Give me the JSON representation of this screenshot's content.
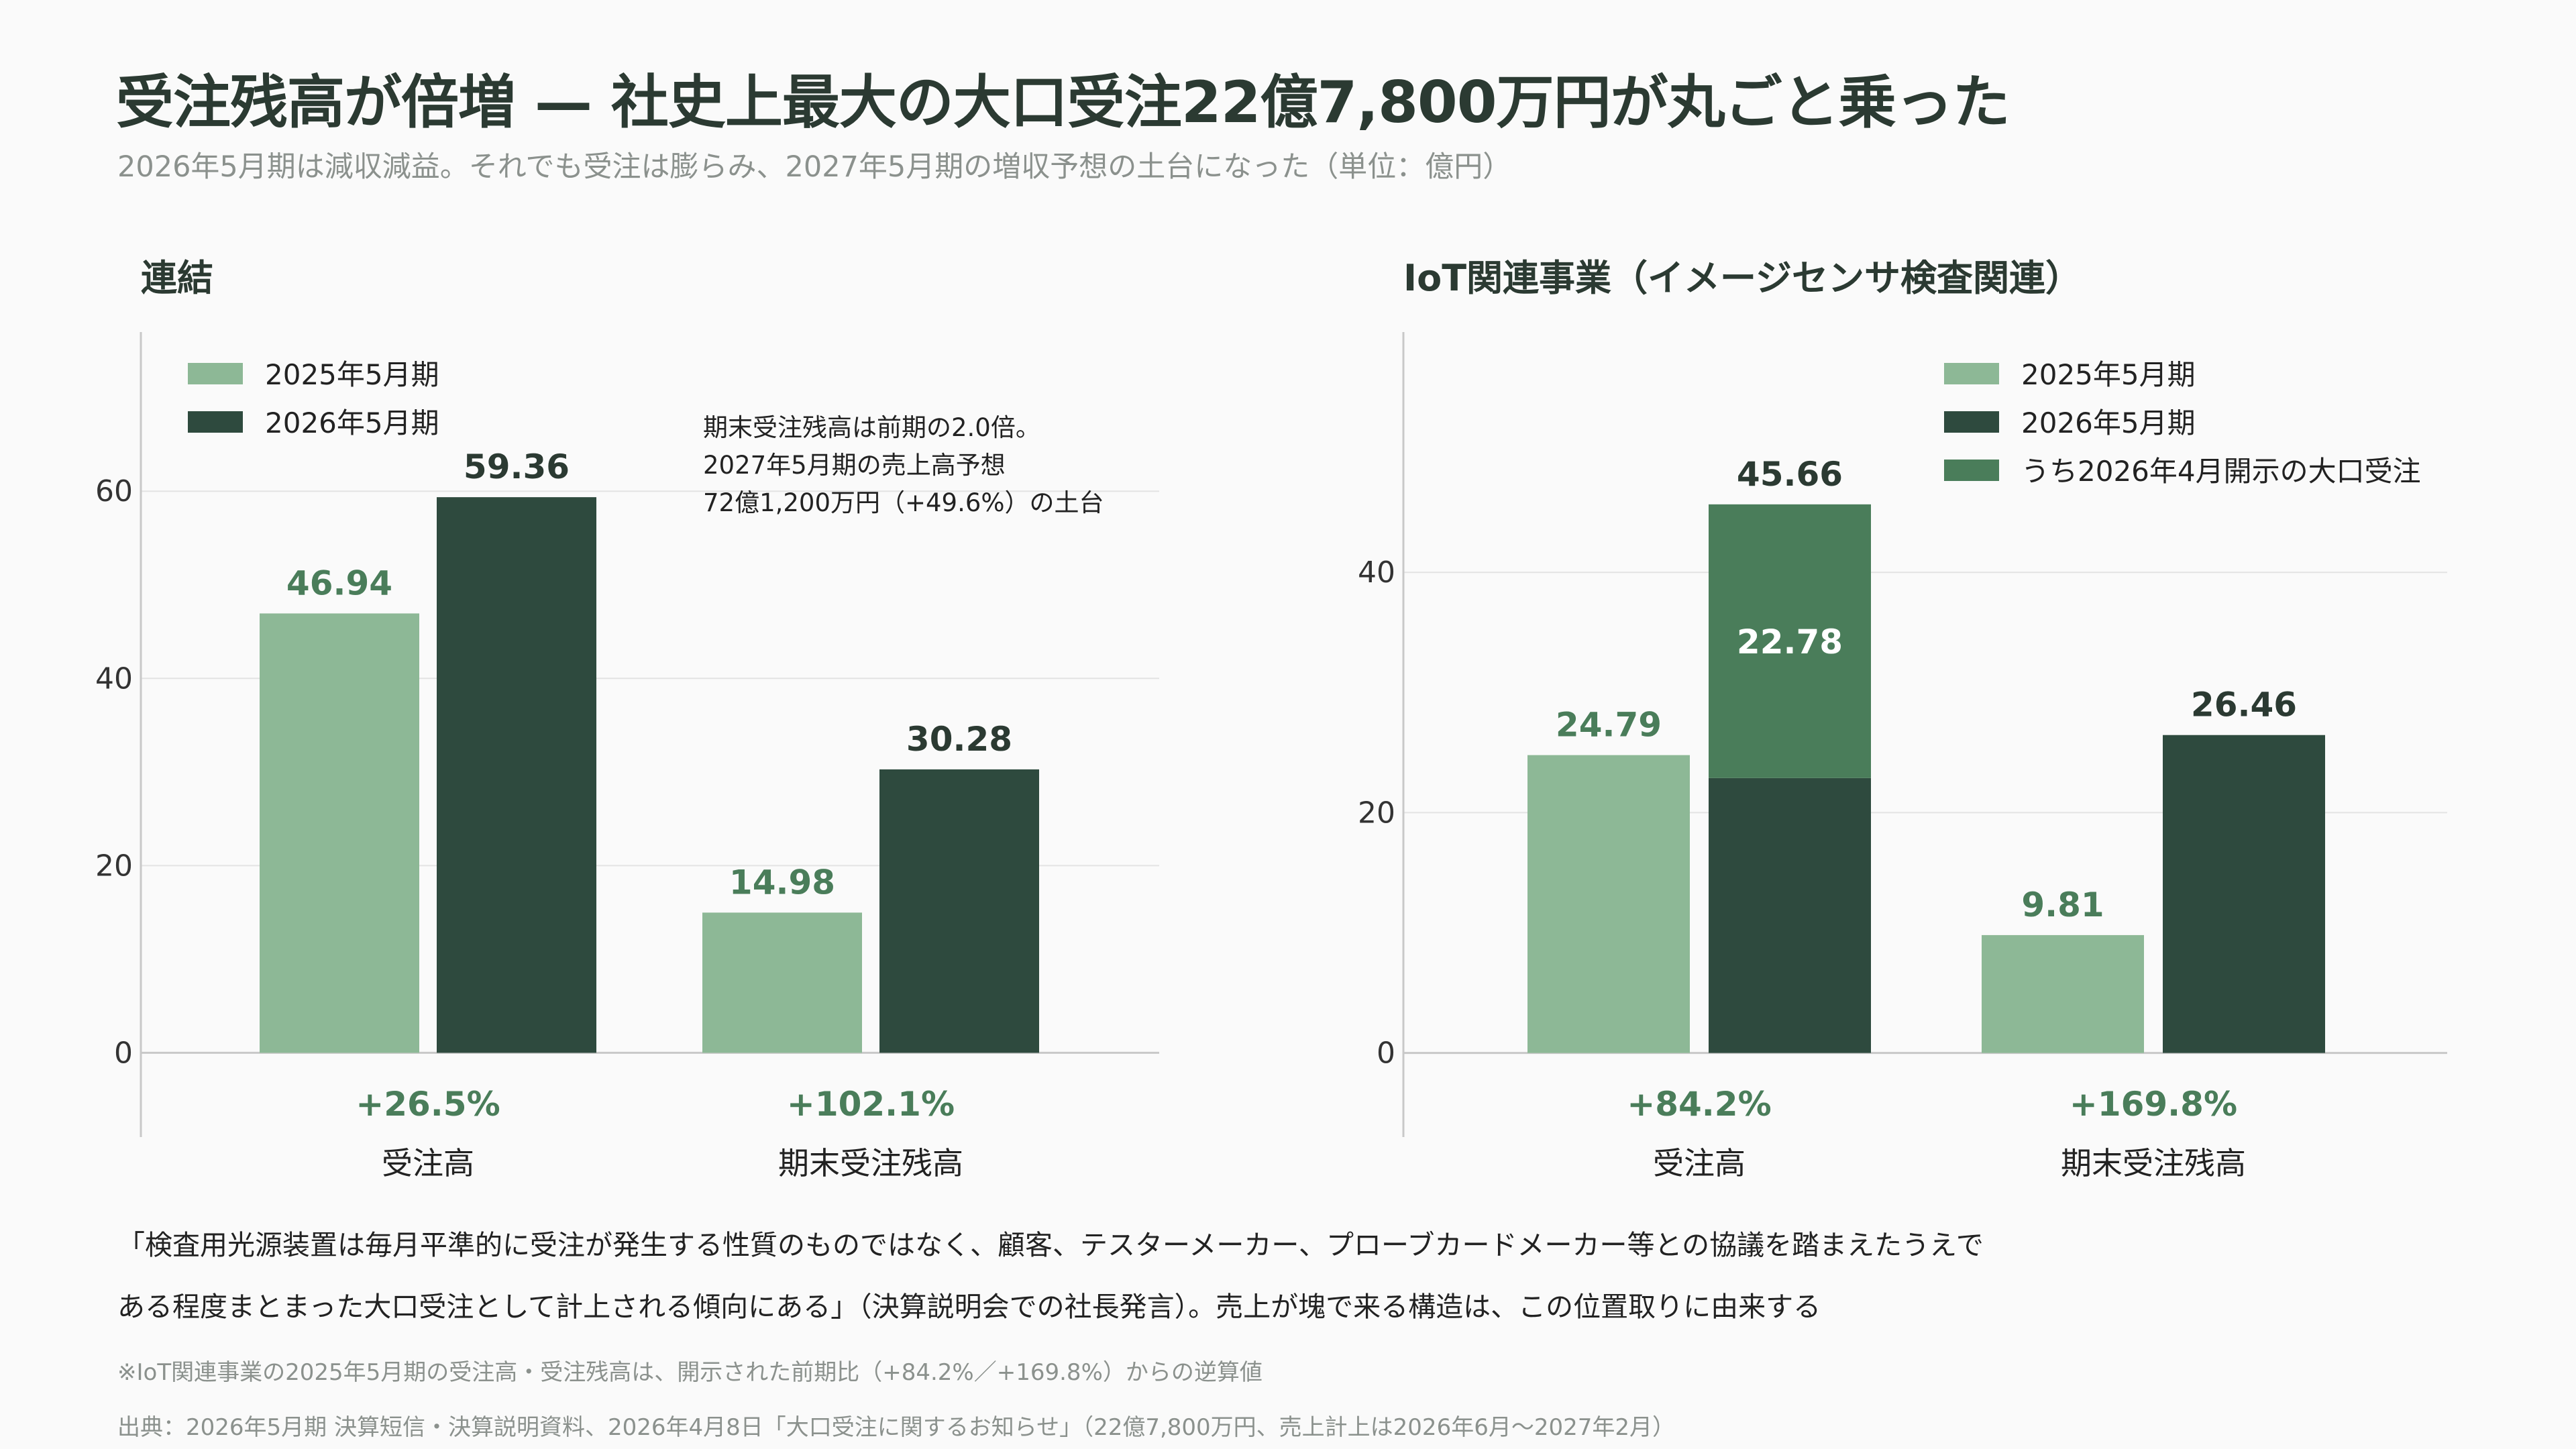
{
  "title": "受注残高が倍増 — 社史上最大の大口受注22億7,800万円が丸ごと乗った",
  "subtitle": "2026年5月期は減収減益。それでも受注は膨らみ、2027年5月期の増収予想の土台になった（単位：億円）",
  "colors": {
    "light": "#8db896",
    "dark": "#2e4a3e",
    "mid": "#4a7d5a",
    "growth": "#4a7d5a",
    "grid": "#e3e3e3",
    "axis": "#c8c8c8"
  },
  "chart_data": [
    {
      "type": "bar",
      "title": "連結",
      "categories": [
        "受注高",
        "期末受注残高"
      ],
      "series": [
        {
          "name": "2025年5月期",
          "values": [
            46.94,
            14.98
          ]
        },
        {
          "name": "2026年5月期",
          "values": [
            59.36,
            30.28
          ]
        }
      ],
      "value_labels": [
        [
          "46.94",
          "14.98"
        ],
        [
          "59.36",
          "30.28"
        ]
      ],
      "growth_labels": [
        "+26.5%",
        "+102.1%"
      ],
      "yticks": [
        0,
        20,
        40,
        60
      ],
      "ylim": [
        -9,
        77
      ],
      "legend_position": "top-left",
      "annotation": [
        "期末受注残高は前期の2.0倍。",
        "2027年5月期の売上高予想",
        "72億1,200万円（+49.6%）の土台"
      ],
      "grid": true
    },
    {
      "type": "bar",
      "title": "IoT関連事業（イメージセンサ検査関連）",
      "categories": [
        "受注高",
        "期末受注残高"
      ],
      "series": [
        {
          "name": "2025年5月期",
          "values": [
            24.79,
            9.81
          ]
        },
        {
          "name": "2026年5月期",
          "values": [
            45.66,
            26.46
          ]
        },
        {
          "name": "うち2026年4月開示の大口受注",
          "values": [
            22.78,
            0
          ]
        }
      ],
      "value_labels": [
        [
          "24.79",
          "9.81"
        ],
        [
          "45.66",
          "26.46"
        ],
        [
          "22.78",
          ""
        ]
      ],
      "growth_labels": [
        "+84.2%",
        "+169.8%"
      ],
      "yticks": [
        0,
        20,
        40
      ],
      "ylim": [
        -7,
        60
      ],
      "legend_position": "top-right",
      "grid": true
    }
  ],
  "quote_lines": [
    "「検査用光源装置は毎月平準的に受注が発生する性質のものではなく、顧客、テスターメーカー、プローブカードメーカー等との協議を踏まえたうえで",
    "ある程度まとまった大口受注として計上される傾向にある」（決算説明会での社長発言）。売上が塊で来る構造は、この位置取りに由来する"
  ],
  "footnote": "※IoT関連事業の2025年5月期の受注高・受注残高は、開示された前期比（+84.2%／+169.8%）からの逆算値",
  "source": "出典：2026年5月期 決算短信・決算説明資料、2026年4月8日「大口受注に関するお知らせ」（22億7,800万円、売上計上は2026年6月〜2027年2月）"
}
